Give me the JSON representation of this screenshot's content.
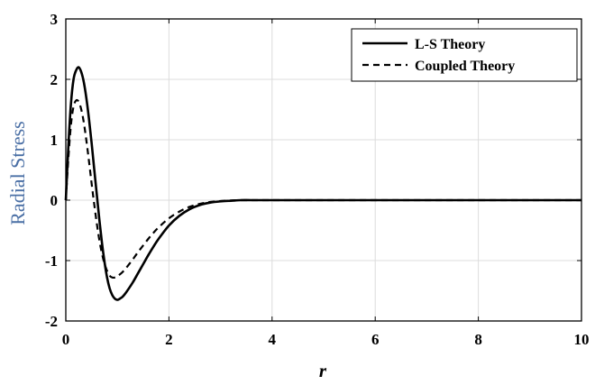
{
  "chart_data": {
    "type": "line",
    "title": "",
    "xlabel": "r",
    "ylabel": "Radial Stress",
    "xlim": [
      0,
      10
    ],
    "ylim": [
      -2,
      3
    ],
    "xticks": [
      0,
      2,
      4,
      6,
      8,
      10
    ],
    "yticks": [
      -2,
      -1,
      0,
      1,
      2,
      3
    ],
    "xtick_labels": [
      "0",
      "2",
      "4",
      "6",
      "8",
      "10"
    ],
    "ytick_labels": [
      "-2",
      "-1",
      "0",
      "1",
      "2",
      "3"
    ],
    "grid": true,
    "legend_position": "top-right",
    "series": [
      {
        "name": "L-S Theory",
        "style": "solid",
        "color": "#000000",
        "x": [
          0,
          0.05,
          0.1,
          0.15,
          0.2,
          0.25,
          0.3,
          0.35,
          0.4,
          0.45,
          0.5,
          0.55,
          0.6,
          0.65,
          0.7,
          0.75,
          0.8,
          0.85,
          0.9,
          0.95,
          1.0,
          1.05,
          1.1,
          1.15,
          1.2,
          1.3,
          1.4,
          1.5,
          1.6,
          1.7,
          1.8,
          2.0,
          2.2,
          2.4,
          2.6,
          2.8,
          3.0,
          3.2,
          3.4,
          3.6,
          3.8,
          4.0,
          5.0,
          6.0,
          7.0,
          8.0,
          9.0,
          10.0
        ],
        "y": [
          0,
          0.9,
          1.6,
          2.0,
          2.15,
          2.2,
          2.12,
          1.95,
          1.68,
          1.34,
          0.95,
          0.52,
          0.1,
          -0.32,
          -0.7,
          -1.02,
          -1.28,
          -1.46,
          -1.57,
          -1.63,
          -1.65,
          -1.63,
          -1.6,
          -1.55,
          -1.49,
          -1.36,
          -1.21,
          -1.06,
          -0.91,
          -0.77,
          -0.64,
          -0.42,
          -0.26,
          -0.15,
          -0.08,
          -0.04,
          -0.02,
          -0.01,
          0,
          0,
          0,
          0,
          0,
          0,
          0,
          0,
          0,
          0
        ]
      },
      {
        "name": "Coupled Theory",
        "style": "dashed",
        "color": "#000000",
        "x": [
          0,
          0.05,
          0.1,
          0.15,
          0.2,
          0.25,
          0.3,
          0.35,
          0.4,
          0.45,
          0.5,
          0.55,
          0.6,
          0.65,
          0.7,
          0.75,
          0.8,
          0.85,
          0.9,
          0.95,
          1.0,
          1.1,
          1.2,
          1.3,
          1.4,
          1.5,
          1.6,
          1.7,
          1.8,
          2.0,
          2.2,
          2.4,
          2.6,
          2.8,
          3.0,
          3.2,
          3.4,
          3.6,
          4.0,
          5.0,
          6.0,
          7.0,
          8.0,
          9.0,
          10.0
        ],
        "y": [
          0,
          0.7,
          1.25,
          1.55,
          1.65,
          1.63,
          1.5,
          1.28,
          0.98,
          0.64,
          0.28,
          -0.06,
          -0.38,
          -0.66,
          -0.88,
          -1.05,
          -1.17,
          -1.25,
          -1.28,
          -1.28,
          -1.26,
          -1.19,
          -1.09,
          -0.98,
          -0.86,
          -0.75,
          -0.64,
          -0.54,
          -0.45,
          -0.3,
          -0.19,
          -0.11,
          -0.06,
          -0.03,
          -0.015,
          -0.005,
          0,
          0,
          0,
          0,
          0,
          0,
          0,
          0,
          0
        ]
      }
    ]
  }
}
